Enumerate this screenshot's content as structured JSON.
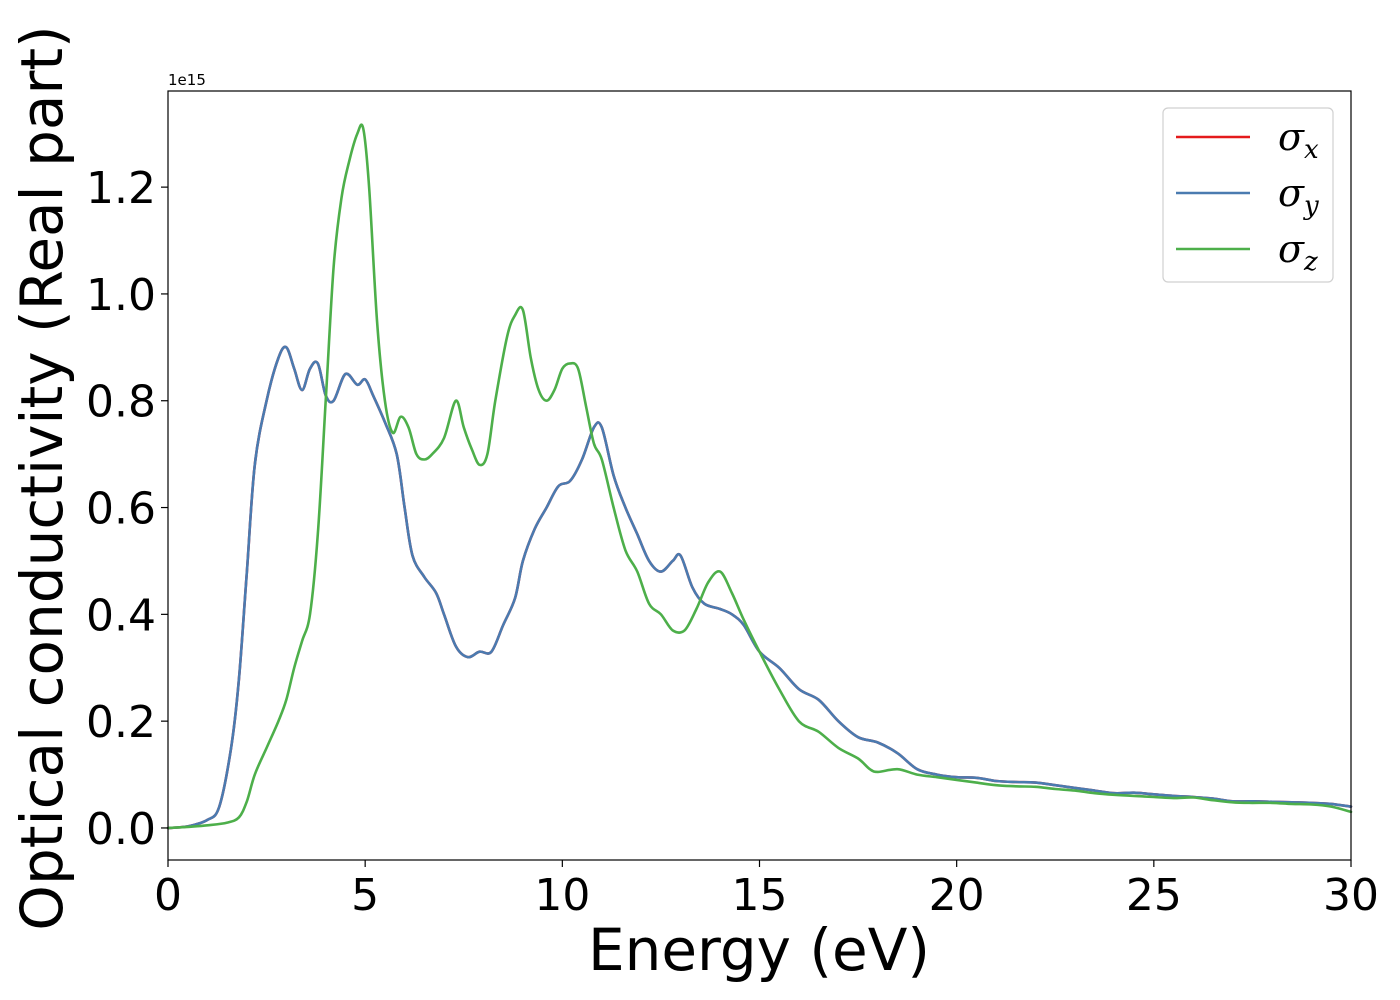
{
  "chart_data": {
    "type": "line",
    "xlabel": "Energy (eV)",
    "ylabel": "Optical conductivity (Real part)",
    "y_multiplier": "1e15",
    "xlim": [
      0,
      30
    ],
    "ylim": [
      -0.06,
      1.38
    ],
    "x_ticks": [
      0,
      5,
      10,
      15,
      20,
      25,
      30
    ],
    "x_tick_labels": [
      "0",
      "5",
      "10",
      "15",
      "20",
      "25",
      "30"
    ],
    "y_ticks": [
      0.0,
      0.2,
      0.4,
      0.6,
      0.8,
      1.0,
      1.2
    ],
    "y_tick_labels": [
      "0.0",
      "0.2",
      "0.4",
      "0.6",
      "0.8",
      "1.0",
      "1.2"
    ],
    "grid": false,
    "legend_position": "top-right",
    "series": [
      {
        "name": "σ",
        "subscript": "x",
        "color": "#e41a1c",
        "x": [
          0,
          0.5,
          1.0,
          1.3,
          1.6,
          1.8,
          2.0,
          2.2,
          2.5,
          2.8,
          3.0,
          3.2,
          3.4,
          3.6,
          3.8,
          4.0,
          4.2,
          4.5,
          4.8,
          5.0,
          5.2,
          5.5,
          5.8,
          6.0,
          6.2,
          6.5,
          6.8,
          7.0,
          7.3,
          7.6,
          7.9,
          8.2,
          8.5,
          8.8,
          9.0,
          9.3,
          9.6,
          9.9,
          10.2,
          10.5,
          10.8,
          11.0,
          11.3,
          11.6,
          11.9,
          12.2,
          12.5,
          12.8,
          13.0,
          13.3,
          13.6,
          14.0,
          14.3,
          14.6,
          15.0,
          15.5,
          16.0,
          16.5,
          17.0,
          17.5,
          18.0,
          18.5,
          19.0,
          19.5,
          20.0,
          20.5,
          21.0,
          21.5,
          22.0,
          22.5,
          23.0,
          23.5,
          24.0,
          24.5,
          25.0,
          25.5,
          26.0,
          26.5,
          27.0,
          27.5,
          28.0,
          28.5,
          29.0,
          29.5,
          30.0
        ],
        "y": [
          0.0,
          0.003,
          0.015,
          0.04,
          0.15,
          0.28,
          0.48,
          0.68,
          0.8,
          0.88,
          0.9,
          0.86,
          0.82,
          0.86,
          0.87,
          0.81,
          0.8,
          0.85,
          0.83,
          0.84,
          0.81,
          0.76,
          0.7,
          0.6,
          0.51,
          0.47,
          0.44,
          0.4,
          0.34,
          0.32,
          0.33,
          0.33,
          0.38,
          0.43,
          0.5,
          0.56,
          0.6,
          0.64,
          0.65,
          0.69,
          0.75,
          0.75,
          0.66,
          0.6,
          0.55,
          0.5,
          0.48,
          0.5,
          0.51,
          0.45,
          0.42,
          0.41,
          0.4,
          0.38,
          0.33,
          0.3,
          0.26,
          0.24,
          0.2,
          0.17,
          0.16,
          0.14,
          0.11,
          0.1,
          0.095,
          0.094,
          0.088,
          0.086,
          0.085,
          0.08,
          0.075,
          0.07,
          0.065,
          0.066,
          0.063,
          0.06,
          0.058,
          0.055,
          0.05,
          0.05,
          0.049,
          0.048,
          0.047,
          0.045,
          0.04
        ]
      },
      {
        "name": "σ",
        "subscript": "y",
        "color": "#4a7bb0",
        "x": [
          0,
          0.5,
          1.0,
          1.3,
          1.6,
          1.8,
          2.0,
          2.2,
          2.5,
          2.8,
          3.0,
          3.2,
          3.4,
          3.6,
          3.8,
          4.0,
          4.2,
          4.5,
          4.8,
          5.0,
          5.2,
          5.5,
          5.8,
          6.0,
          6.2,
          6.5,
          6.8,
          7.0,
          7.3,
          7.6,
          7.9,
          8.2,
          8.5,
          8.8,
          9.0,
          9.3,
          9.6,
          9.9,
          10.2,
          10.5,
          10.8,
          11.0,
          11.3,
          11.6,
          11.9,
          12.2,
          12.5,
          12.8,
          13.0,
          13.3,
          13.6,
          14.0,
          14.3,
          14.6,
          15.0,
          15.5,
          16.0,
          16.5,
          17.0,
          17.5,
          18.0,
          18.5,
          19.0,
          19.5,
          20.0,
          20.5,
          21.0,
          21.5,
          22.0,
          22.5,
          23.0,
          23.5,
          24.0,
          24.5,
          25.0,
          25.5,
          26.0,
          26.5,
          27.0,
          27.5,
          28.0,
          28.5,
          29.0,
          29.5,
          30.0
        ],
        "y": [
          0.0,
          0.003,
          0.015,
          0.04,
          0.15,
          0.28,
          0.48,
          0.68,
          0.8,
          0.88,
          0.9,
          0.86,
          0.82,
          0.86,
          0.87,
          0.81,
          0.8,
          0.85,
          0.83,
          0.84,
          0.81,
          0.76,
          0.7,
          0.6,
          0.51,
          0.47,
          0.44,
          0.4,
          0.34,
          0.32,
          0.33,
          0.33,
          0.38,
          0.43,
          0.5,
          0.56,
          0.6,
          0.64,
          0.65,
          0.69,
          0.75,
          0.75,
          0.66,
          0.6,
          0.55,
          0.5,
          0.48,
          0.5,
          0.51,
          0.45,
          0.42,
          0.41,
          0.4,
          0.38,
          0.33,
          0.3,
          0.26,
          0.24,
          0.2,
          0.17,
          0.16,
          0.14,
          0.11,
          0.1,
          0.095,
          0.094,
          0.088,
          0.086,
          0.085,
          0.08,
          0.075,
          0.07,
          0.065,
          0.066,
          0.063,
          0.06,
          0.058,
          0.055,
          0.05,
          0.05,
          0.049,
          0.048,
          0.047,
          0.045,
          0.04
        ]
      },
      {
        "name": "σ",
        "subscript": "z",
        "color": "#4daf4a",
        "x": [
          0,
          0.5,
          1.0,
          1.5,
          1.8,
          2.0,
          2.2,
          2.5,
          2.8,
          3.0,
          3.2,
          3.4,
          3.6,
          3.8,
          4.0,
          4.2,
          4.4,
          4.6,
          4.8,
          4.95,
          5.1,
          5.3,
          5.5,
          5.7,
          5.9,
          6.1,
          6.3,
          6.5,
          6.7,
          7.0,
          7.3,
          7.5,
          7.7,
          7.9,
          8.1,
          8.3,
          8.6,
          8.8,
          9.0,
          9.2,
          9.4,
          9.6,
          9.8,
          10.0,
          10.2,
          10.4,
          10.6,
          10.8,
          11.0,
          11.3,
          11.6,
          11.9,
          12.2,
          12.5,
          12.8,
          13.1,
          13.4,
          13.7,
          14.0,
          14.3,
          14.6,
          15.0,
          15.5,
          16.0,
          16.5,
          17.0,
          17.5,
          17.8,
          18.0,
          18.5,
          19.0,
          19.5,
          20.0,
          20.5,
          21.0,
          21.5,
          22.0,
          22.5,
          23.0,
          23.5,
          24.0,
          24.5,
          25.0,
          25.5,
          26.0,
          26.5,
          27.0,
          27.5,
          28.0,
          28.5,
          29.0,
          29.5,
          30.0
        ],
        "y": [
          0.0,
          0.002,
          0.005,
          0.01,
          0.02,
          0.05,
          0.1,
          0.15,
          0.2,
          0.24,
          0.3,
          0.35,
          0.4,
          0.55,
          0.8,
          1.05,
          1.18,
          1.25,
          1.3,
          1.31,
          1.2,
          0.95,
          0.8,
          0.74,
          0.77,
          0.75,
          0.7,
          0.69,
          0.7,
          0.73,
          0.8,
          0.75,
          0.71,
          0.68,
          0.7,
          0.8,
          0.92,
          0.96,
          0.97,
          0.88,
          0.82,
          0.8,
          0.82,
          0.86,
          0.87,
          0.86,
          0.79,
          0.72,
          0.69,
          0.6,
          0.52,
          0.48,
          0.42,
          0.4,
          0.37,
          0.37,
          0.41,
          0.46,
          0.48,
          0.44,
          0.39,
          0.33,
          0.26,
          0.2,
          0.18,
          0.15,
          0.13,
          0.11,
          0.105,
          0.11,
          0.1,
          0.095,
          0.09,
          0.085,
          0.08,
          0.078,
          0.077,
          0.073,
          0.07,
          0.065,
          0.062,
          0.06,
          0.058,
          0.056,
          0.057,
          0.052,
          0.048,
          0.047,
          0.047,
          0.045,
          0.044,
          0.04,
          0.03
        ]
      }
    ]
  }
}
